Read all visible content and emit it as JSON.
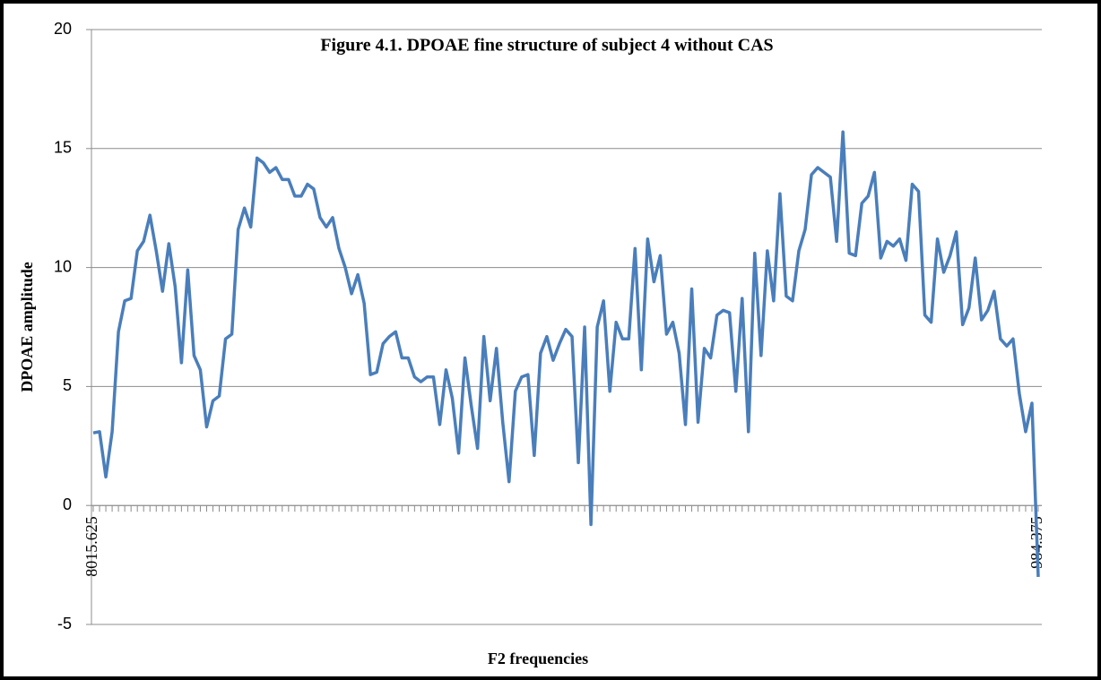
{
  "chart_data": {
    "type": "line",
    "title": "Figure 4.1. DPOAE  fine structure of subject 4 without CAS",
    "x_label": "F2 frequencies",
    "y_label": "DPOAE amplitude",
    "categories": [
      "8015.625",
      null,
      null,
      null,
      null,
      null,
      null,
      null,
      null,
      null,
      null,
      null,
      null,
      null,
      null,
      null,
      null,
      null,
      null,
      null,
      null,
      null,
      null,
      null,
      null,
      null,
      null,
      null,
      null,
      null,
      null,
      null,
      null,
      null,
      null,
      null,
      null,
      null,
      null,
      null,
      null,
      null,
      null,
      null,
      null,
      null,
      null,
      null,
      null,
      null,
      null,
      null,
      null,
      null,
      null,
      null,
      null,
      null,
      null,
      null,
      null,
      null,
      null,
      null,
      null,
      null,
      null,
      null,
      null,
      null,
      null,
      null,
      null,
      null,
      null,
      null,
      null,
      null,
      null,
      null,
      null,
      null,
      null,
      null,
      null,
      null,
      null,
      null,
      null,
      null,
      null,
      null,
      null,
      null,
      null,
      null,
      null,
      null,
      null,
      null,
      null,
      null,
      null,
      null,
      null,
      null,
      null,
      null,
      null,
      null,
      null,
      null,
      null,
      null,
      null,
      null,
      null,
      null,
      null,
      null,
      null,
      null,
      null,
      null,
      null,
      null,
      null,
      null,
      null,
      null,
      null,
      null,
      null,
      null,
      null,
      null,
      null,
      null,
      null,
      null,
      null,
      null,
      null,
      null,
      null,
      null,
      null,
      null,
      null,
      null,
      "984.375"
    ],
    "series": [
      {
        "name": "DPOAE amplitude",
        "color": "#4a7ebb",
        "values": [
          3.05,
          3.1,
          1.2,
          3.1,
          7.3,
          8.6,
          8.7,
          10.7,
          11.1,
          12.2,
          10.7,
          9.0,
          11.0,
          9.2,
          6.0,
          9.9,
          6.3,
          5.7,
          3.3,
          4.4,
          4.6,
          7.0,
          7.2,
          11.6,
          12.5,
          11.7,
          14.6,
          14.4,
          14.0,
          14.2,
          13.7,
          13.7,
          13.0,
          13.0,
          13.5,
          13.3,
          12.1,
          11.7,
          12.1,
          10.8,
          10.0,
          8.9,
          9.7,
          8.5,
          5.5,
          5.6,
          6.8,
          7.1,
          7.3,
          6.2,
          6.2,
          5.4,
          5.2,
          5.4,
          5.4,
          3.4,
          5.7,
          4.5,
          2.2,
          6.2,
          4.2,
          2.4,
          7.1,
          4.4,
          6.6,
          3.5,
          1.0,
          4.8,
          5.4,
          5.5,
          2.1,
          6.4,
          7.1,
          6.1,
          6.8,
          7.4,
          7.1,
          1.8,
          7.5,
          -0.8,
          7.5,
          8.6,
          4.8,
          7.7,
          7.0,
          7.0,
          10.8,
          5.7,
          11.2,
          9.4,
          10.5,
          7.2,
          7.7,
          6.4,
          3.4,
          9.1,
          3.5,
          6.6,
          6.2,
          8.0,
          8.2,
          8.1,
          4.8,
          8.7,
          3.1,
          10.6,
          6.3,
          10.7,
          8.6,
          13.1,
          8.8,
          8.6,
          10.7,
          11.6,
          13.9,
          14.2,
          14.0,
          13.8,
          11.1,
          15.7,
          10.6,
          10.5,
          12.7,
          13.0,
          14.0,
          10.4,
          11.1,
          10.9,
          11.2,
          10.3,
          13.5,
          13.2,
          8.0,
          7.7,
          11.2,
          9.8,
          10.5,
          11.5,
          7.6,
          8.3,
          10.4,
          7.8,
          8.2,
          9.0,
          7.0,
          6.7,
          7.0,
          4.7,
          3.1,
          4.3,
          -3.0
        ]
      }
    ],
    "ylim": [
      -5,
      20
    ],
    "yticks": [
      -5,
      0,
      5,
      10,
      15,
      20
    ],
    "grid": true
  }
}
